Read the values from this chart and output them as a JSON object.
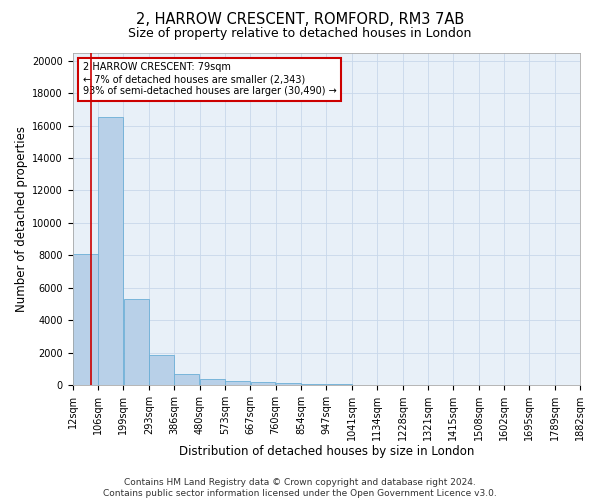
{
  "title1": "2, HARROW CRESCENT, ROMFORD, RM3 7AB",
  "title2": "Size of property relative to detached houses in London",
  "xlabel": "Distribution of detached houses by size in London",
  "ylabel": "Number of detached properties",
  "bin_edges": [
    12,
    106,
    199,
    293,
    386,
    480,
    573,
    667,
    760,
    854,
    947,
    1041,
    1134,
    1228,
    1321,
    1415,
    1508,
    1602,
    1695,
    1789,
    1882
  ],
  "bar_heights": [
    8100,
    16500,
    5300,
    1850,
    700,
    350,
    280,
    200,
    150,
    80,
    50,
    35,
    25,
    20,
    15,
    10,
    8,
    6,
    5,
    4
  ],
  "bar_color": "#b8d0e8",
  "bar_edge_color": "#6baed6",
  "property_sqm": 79,
  "property_line_color": "#cc0000",
  "annotation_text": "2 HARROW CRESCENT: 79sqm\n← 7% of detached houses are smaller (2,343)\n93% of semi-detached houses are larger (30,490) →",
  "annotation_box_color": "#cc0000",
  "annotation_text_color": "#000000",
  "ylim": [
    0,
    20500
  ],
  "yticks": [
    0,
    2000,
    4000,
    6000,
    8000,
    10000,
    12000,
    14000,
    16000,
    18000,
    20000
  ],
  "grid_color": "#c8d8ea",
  "bg_color": "#e8f0f8",
  "footer": "Contains HM Land Registry data © Crown copyright and database right 2024.\nContains public sector information licensed under the Open Government Licence v3.0.",
  "title1_fontsize": 10.5,
  "title2_fontsize": 9,
  "xlabel_fontsize": 8.5,
  "ylabel_fontsize": 8.5,
  "tick_fontsize": 7,
  "footer_fontsize": 6.5,
  "annotation_fontsize": 7
}
